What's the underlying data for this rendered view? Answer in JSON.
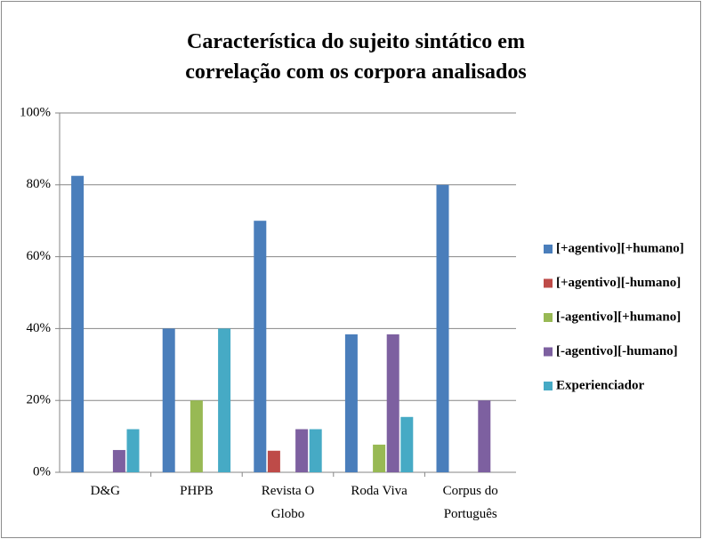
{
  "chart_data": {
    "type": "bar",
    "title": "Característica do sujeito sintático em correlação com os corpora analisados",
    "categories": [
      "D&G",
      "PHPB",
      "Revista O Globo",
      "Roda Viva",
      "Corpus do Português"
    ],
    "series": [
      {
        "name": "[+agentivo][+humano]",
        "color": "#4a7ebb",
        "values": [
          82.5,
          40,
          70,
          38.4,
          80
        ]
      },
      {
        "name": "[+agentivo][-humano]",
        "color": "#be4b48",
        "values": [
          0,
          0,
          6,
          0,
          0
        ]
      },
      {
        "name": "[-agentivo][+humano]",
        "color": "#98b954",
        "values": [
          0,
          20,
          0,
          7.7,
          0
        ]
      },
      {
        "name": "[-agentivo][-humano]",
        "color": "#7d60a0",
        "values": [
          6.2,
          0,
          12,
          38.4,
          20
        ]
      },
      {
        "name": "Experienciador",
        "color": "#46aac5",
        "values": [
          12,
          40,
          12,
          15.4,
          0
        ]
      }
    ],
    "ylim": [
      0,
      100
    ],
    "yticks": [
      {
        "value": 0,
        "label": "0%"
      },
      {
        "value": 20,
        "label": "20%"
      },
      {
        "value": 40,
        "label": "40%"
      },
      {
        "value": 60,
        "label": "60%"
      },
      {
        "value": 80,
        "label": "80%"
      },
      {
        "value": 100,
        "label": "100%"
      }
    ],
    "grid": true,
    "legend": "right"
  }
}
